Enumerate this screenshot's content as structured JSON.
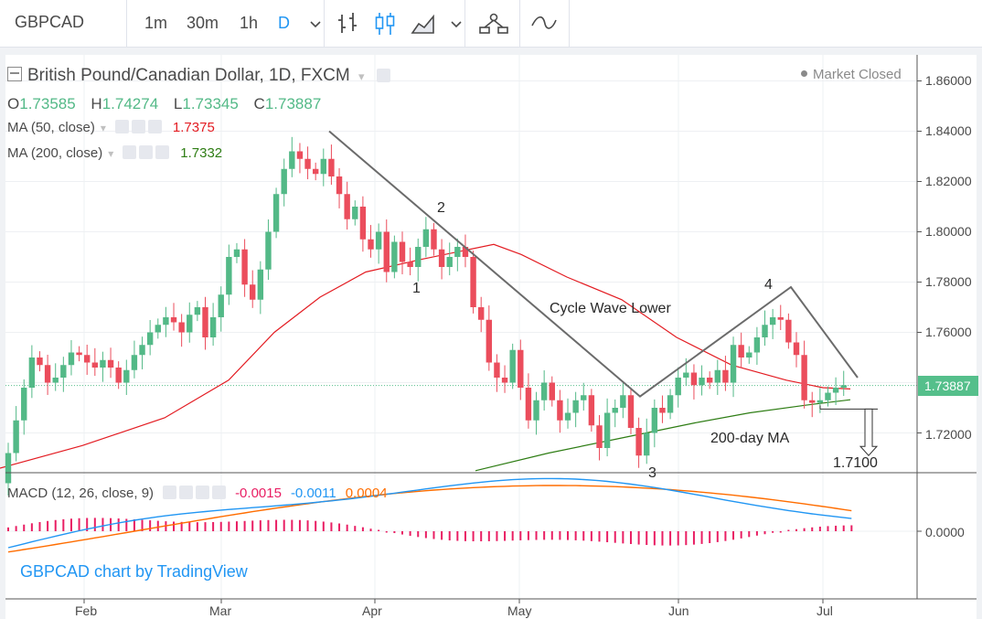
{
  "toolbar": {
    "symbol": "GBPCAD",
    "intervals": [
      "1m",
      "30m",
      "1h",
      "D"
    ],
    "active_interval": "D",
    "icons": [
      "chevron-down-icon",
      "bar-chart-icon",
      "candles-icon",
      "area-chart-icon",
      "chevron-down-icon",
      "indicators-icon",
      "drawing-icon"
    ]
  },
  "legend": {
    "title": "British Pound/Canadian Dollar, 1D, FXCM",
    "ohlc": [
      {
        "k": "O",
        "v": "1.73585"
      },
      {
        "k": "H",
        "v": "1.74274"
      },
      {
        "k": "L",
        "v": "1.73345"
      },
      {
        "k": "C",
        "v": "1.73887"
      }
    ],
    "ma50_label": "MA (50, close)",
    "ma50_value": "1.7375",
    "ma200_label": "MA (200, close)",
    "ma200_value": "1.7332",
    "market_status": "Market Closed",
    "macd_label": "MACD (12, 26, close, 9)",
    "macd_hist": "-0.0015",
    "macd_line": "-0.0011",
    "macd_signal": "0.0004",
    "watermark": "GBPCAD chart by TradingView"
  },
  "colors": {
    "up": "#53b987",
    "down": "#eb4d5c",
    "ma50": "#e31c22",
    "ma200": "#2e7d14",
    "macd": "#2196f3",
    "signal": "#ff6d00",
    "hist": "#e91e63",
    "price_tag": "#55bf8b",
    "ohlc_value": "#53b987"
  },
  "annotations": {
    "wave1": "1",
    "wave2": "2",
    "wave3": "3",
    "wave4": "4",
    "cycle": "Cycle Wave Lower",
    "ma200": "200-day MA",
    "target": "1.7100"
  },
  "chart_data": [
    {
      "type": "candlestick",
      "title": "British Pound/Canadian Dollar, 1D, FXCM",
      "x_ticks": [
        "Feb",
        "Mar",
        "Apr",
        "May",
        "Jun",
        "Jul"
      ],
      "y_ticks": [
        "1.86000",
        "1.84000",
        "1.82000",
        "1.80000",
        "1.78000",
        "1.76000",
        "1.72000"
      ],
      "ylim": [
        1.705,
        1.868
      ],
      "last_price": "1.73887",
      "close_path": [
        1.7,
        1.712,
        1.725,
        1.738,
        1.75,
        1.747,
        1.74,
        1.742,
        1.747,
        1.752,
        1.751,
        1.748,
        1.746,
        1.749,
        1.746,
        1.74,
        1.745,
        1.751,
        1.755,
        1.76,
        1.763,
        1.766,
        1.764,
        1.76,
        1.767,
        1.77,
        1.758,
        1.766,
        1.775,
        1.79,
        1.793,
        1.779,
        1.773,
        1.785,
        1.8,
        1.815,
        1.825,
        1.832,
        1.829,
        1.825,
        1.823,
        1.829,
        1.822,
        1.815,
        1.805,
        1.81,
        1.797,
        1.793,
        1.8,
        1.784,
        1.796,
        1.788,
        1.786,
        1.794,
        1.801,
        1.793,
        1.786,
        1.79,
        1.794,
        1.79,
        1.77,
        1.765,
        1.748,
        1.742,
        1.74,
        1.753,
        1.738,
        1.725,
        1.733,
        1.74,
        1.733,
        1.725,
        1.728,
        1.733,
        1.735,
        1.723,
        1.714,
        1.728,
        1.73,
        1.735,
        1.722,
        1.711,
        1.72,
        1.73,
        1.728,
        1.735,
        1.742,
        1.744,
        1.739,
        1.742,
        1.74,
        1.745,
        1.74,
        1.755,
        1.75,
        1.752,
        1.758,
        1.763,
        1.766,
        1.765,
        1.756,
        1.751,
        1.733,
        1.732,
        1.733,
        1.736,
        1.738,
        1.739
      ],
      "ma50": [
        [
          0,
          1.706
        ],
        [
          90,
          1.715
        ],
        [
          180,
          1.726
        ],
        [
          250,
          1.741
        ],
        [
          300,
          1.76
        ],
        [
          350,
          1.774
        ],
        [
          400,
          1.784
        ],
        [
          460,
          1.789
        ],
        [
          540,
          1.795
        ],
        [
          570,
          1.791
        ],
        [
          620,
          1.782
        ],
        [
          680,
          1.773
        ],
        [
          740,
          1.758
        ],
        [
          800,
          1.747
        ],
        [
          860,
          1.741
        ],
        [
          900,
          1.738
        ],
        [
          930,
          1.7375
        ]
      ],
      "ma200": [
        [
          520,
          1.705
        ],
        [
          600,
          1.712
        ],
        [
          680,
          1.718
        ],
        [
          760,
          1.724
        ],
        [
          820,
          1.728
        ],
        [
          880,
          1.731
        ],
        [
          930,
          1.7332
        ]
      ],
      "wave_line": [
        [
          360,
          1.84
        ],
        [
          700,
          1.7345
        ],
        [
          865,
          1.778
        ],
        [
          938,
          1.742
        ]
      ],
      "target_bracket": {
        "from_price": 1.7295,
        "arrow_to": 1.711,
        "target": 1.71
      }
    },
    {
      "type": "macd",
      "title": "MACD (12, 26, close, 9)",
      "y_ticks": [
        "0.0000"
      ],
      "values": {
        "histogram": -0.0015,
        "macd": -0.0011,
        "signal": 0.0004
      }
    }
  ]
}
